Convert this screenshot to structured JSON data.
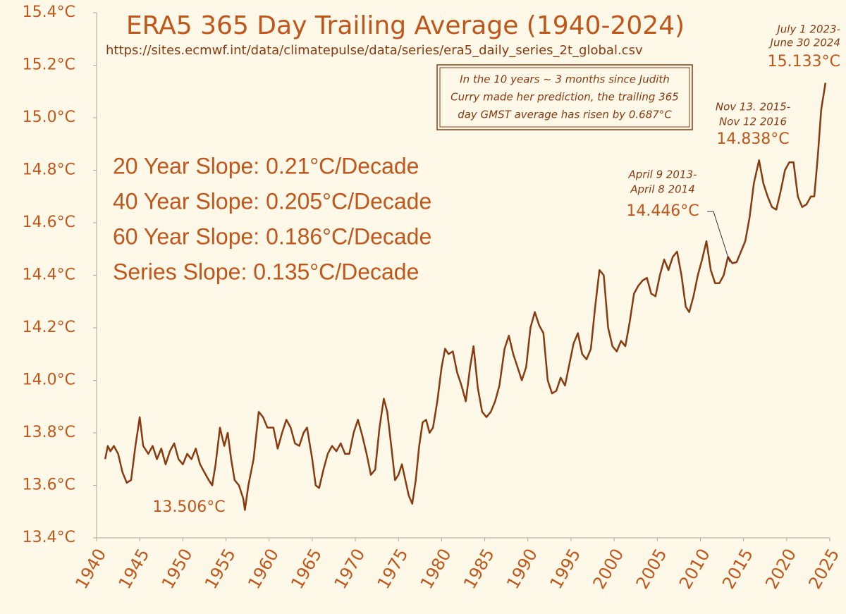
{
  "chart_data": {
    "type": "line",
    "title": "ERA5 365 Day Trailing Average (1940-2024)",
    "subtitle": "https://sites.ecmwf.int/data/climatepulse/data/series/era5_daily_series_2t_global.csv",
    "color": "#8b3a0f",
    "text_color": "#c0561a",
    "background": "#fdf8e8",
    "grid": false,
    "xlim": [
      1940,
      2025
    ],
    "xticks": [
      1940,
      1945,
      1950,
      1955,
      1960,
      1965,
      1970,
      1975,
      1980,
      1985,
      1990,
      1995,
      2000,
      2005,
      2010,
      2015,
      2020,
      2025
    ],
    "ylim": [
      13.4,
      15.4
    ],
    "yticks": [
      {
        "value": 13.4,
        "label": "13.4°C"
      },
      {
        "value": 13.6,
        "label": "13.6°C"
      },
      {
        "value": 13.8,
        "label": "13.8°C"
      },
      {
        "value": 14.0,
        "label": "14.0°C"
      },
      {
        "value": 14.2,
        "label": "14.2°C"
      },
      {
        "value": 14.4,
        "label": "14.4°C"
      },
      {
        "value": 14.6,
        "label": "14.6°C"
      },
      {
        "value": 14.8,
        "label": "14.8°C"
      },
      {
        "value": 15.0,
        "label": "15.0°C"
      },
      {
        "value": 15.2,
        "label": "15.2°C"
      },
      {
        "value": 15.4,
        "label": "15.4°C"
      }
    ],
    "x": [
      1941.0,
      1941.3,
      1941.6,
      1942.0,
      1942.5,
      1943.0,
      1943.5,
      1944.0,
      1944.5,
      1945.0,
      1945.4,
      1946.0,
      1946.5,
      1947.0,
      1947.5,
      1948.0,
      1948.5,
      1949.0,
      1949.5,
      1950.0,
      1950.5,
      1951.0,
      1951.5,
      1952.0,
      1952.5,
      1953.0,
      1953.4,
      1953.8,
      1954.3,
      1954.8,
      1955.2,
      1955.6,
      1956.0,
      1956.5,
      1957.0,
      1957.2,
      1957.6,
      1958.2,
      1958.8,
      1959.3,
      1959.8,
      1960.5,
      1961.0,
      1961.5,
      1962.0,
      1962.5,
      1963.0,
      1963.5,
      1964.0,
      1964.4,
      1965.0,
      1965.4,
      1965.8,
      1966.3,
      1966.8,
      1967.3,
      1967.8,
      1968.3,
      1968.8,
      1969.3,
      1969.8,
      1970.3,
      1970.8,
      1971.3,
      1971.8,
      1972.3,
      1972.8,
      1973.3,
      1973.7,
      1974.2,
      1974.6,
      1975.0,
      1975.4,
      1975.8,
      1976.2,
      1976.6,
      1977.0,
      1977.4,
      1977.8,
      1978.2,
      1978.6,
      1979.0,
      1979.5,
      1980.0,
      1980.4,
      1980.8,
      1981.3,
      1981.8,
      1982.3,
      1982.8,
      1983.3,
      1983.7,
      1984.2,
      1984.7,
      1985.2,
      1985.7,
      1986.2,
      1986.7,
      1987.3,
      1987.8,
      1988.3,
      1988.8,
      1989.3,
      1989.8,
      1990.3,
      1990.8,
      1991.3,
      1991.8,
      1992.3,
      1992.8,
      1993.3,
      1993.8,
      1994.3,
      1994.8,
      1995.3,
      1995.8,
      1996.3,
      1996.8,
      1997.3,
      1997.8,
      1998.3,
      1998.8,
      1999.3,
      1999.8,
      2000.3,
      2000.8,
      2001.3,
      2001.8,
      2002.3,
      2002.8,
      2003.3,
      2003.8,
      2004.3,
      2004.8,
      2005.3,
      2005.8,
      2006.3,
      2006.8,
      2007.3,
      2007.8,
      2008.3,
      2008.7,
      2009.2,
      2009.7,
      2010.2,
      2010.7,
      2011.2,
      2011.7,
      2012.2,
      2012.7,
      2013.2,
      2013.7,
      2014.2,
      2014.7,
      2015.2,
      2015.7,
      2016.2,
      2016.8,
      2017.3,
      2017.8,
      2018.3,
      2018.8,
      2019.3,
      2019.8,
      2020.3,
      2020.8,
      2021.3,
      2021.8,
      2022.3,
      2022.8,
      2023.2,
      2023.6,
      2024.0,
      2024.5
    ],
    "values": [
      13.7,
      13.75,
      13.73,
      13.75,
      13.72,
      13.65,
      13.61,
      13.62,
      13.75,
      13.86,
      13.75,
      13.72,
      13.75,
      13.7,
      13.74,
      13.68,
      13.73,
      13.76,
      13.7,
      13.68,
      13.72,
      13.7,
      13.74,
      13.68,
      13.65,
      13.62,
      13.6,
      13.68,
      13.82,
      13.75,
      13.8,
      13.7,
      13.62,
      13.6,
      13.55,
      13.506,
      13.6,
      13.7,
      13.88,
      13.86,
      13.82,
      13.82,
      13.74,
      13.8,
      13.85,
      13.82,
      13.76,
      13.75,
      13.8,
      13.82,
      13.7,
      13.6,
      13.59,
      13.66,
      13.72,
      13.75,
      13.73,
      13.76,
      13.72,
      13.72,
      13.8,
      13.85,
      13.79,
      13.72,
      13.64,
      13.66,
      13.82,
      13.93,
      13.88,
      13.74,
      13.62,
      13.64,
      13.68,
      13.62,
      13.56,
      13.53,
      13.62,
      13.75,
      13.84,
      13.85,
      13.8,
      13.82,
      13.92,
      14.05,
      14.12,
      14.1,
      14.11,
      14.03,
      13.98,
      13.92,
      14.05,
      14.13,
      13.97,
      13.88,
      13.86,
      13.88,
      13.92,
      13.98,
      14.12,
      14.17,
      14.1,
      14.05,
      14.0,
      14.05,
      14.2,
      14.26,
      14.21,
      14.18,
      14.0,
      13.95,
      13.96,
      14.01,
      13.98,
      14.06,
      14.14,
      14.18,
      14.1,
      14.08,
      14.12,
      14.28,
      14.42,
      14.4,
      14.2,
      14.13,
      14.11,
      14.15,
      14.13,
      14.22,
      14.33,
      14.36,
      14.38,
      14.39,
      14.33,
      14.32,
      14.4,
      14.46,
      14.42,
      14.47,
      14.49,
      14.4,
      14.28,
      14.26,
      14.32,
      14.4,
      14.46,
      14.53,
      14.42,
      14.37,
      14.37,
      14.4,
      14.47,
      14.446,
      14.45,
      14.49,
      14.53,
      14.62,
      14.75,
      14.838,
      14.75,
      14.7,
      14.66,
      14.65,
      14.72,
      14.8,
      14.83,
      14.83,
      14.7,
      14.66,
      14.67,
      14.7,
      14.7,
      14.85,
      15.03,
      15.133
    ],
    "slopes": [
      "20 Year Slope: 0.21°C/Decade",
      "40 Year Slope: 0.205°C/Decade",
      "60 Year Slope: 0.186°C/Decade",
      "Series  Slope: 0.135°C/Decade"
    ],
    "note": [
      "In the 10 years ~ 3 months since Judith",
      "Curry made her prediction, the trailing 365",
      "day GMST average has risen by 0.687°C"
    ],
    "annotations": [
      {
        "lines": [
          "13.506°C"
        ]
      },
      {
        "lines": [
          "April 9 2013-",
          "April 8 2014"
        ]
      },
      {
        "lines": [
          "14.446°C"
        ]
      },
      {
        "lines": [
          "Nov 13. 2015-",
          "Nov 12 2016"
        ]
      },
      {
        "lines": [
          "14.838°C"
        ]
      },
      {
        "lines": [
          "July 1 2023-",
          "June 30 2024"
        ]
      },
      {
        "lines": [
          "15.133°C"
        ]
      }
    ]
  }
}
